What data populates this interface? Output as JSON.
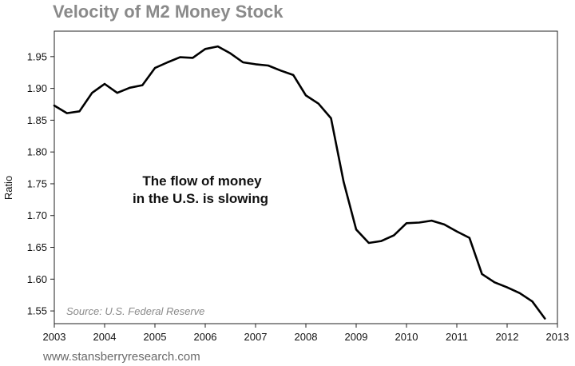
{
  "header": {
    "title": "Velocity of M2 Money Stock"
  },
  "footer": {
    "url": "www.stansberryresearch.com"
  },
  "chart_data": {
    "type": "line",
    "title": "Velocity of M2 Money Stock",
    "xlabel": "",
    "ylabel": "Ratio",
    "xlim": [
      2003,
      2013
    ],
    "ylim": [
      1.53,
      1.99
    ],
    "x_ticks": [
      2003,
      2004,
      2005,
      2006,
      2007,
      2008,
      2009,
      2010,
      2011,
      2012,
      2013
    ],
    "x_tick_labels": [
      "2003",
      "2004",
      "2005",
      "2006",
      "2007",
      "2008",
      "2009",
      "2010",
      "2011",
      "2012",
      "2013"
    ],
    "y_ticks": [
      1.55,
      1.6,
      1.65,
      1.7,
      1.75,
      1.8,
      1.85,
      1.9,
      1.95
    ],
    "y_tick_labels": [
      "1.55",
      "1.60",
      "1.65",
      "1.70",
      "1.75",
      "1.80",
      "1.85",
      "1.90",
      "1.95"
    ],
    "grid": false,
    "legend": "none",
    "series": [
      {
        "name": "Velocity of M2",
        "x": [
          2003.0,
          2003.25,
          2003.5,
          2003.75,
          2004.0,
          2004.25,
          2004.5,
          2004.75,
          2005.0,
          2005.25,
          2005.5,
          2005.75,
          2006.0,
          2006.25,
          2006.5,
          2006.75,
          2007.0,
          2007.25,
          2007.5,
          2007.75,
          2008.0,
          2008.25,
          2008.5,
          2008.75,
          2009.0,
          2009.25,
          2009.5,
          2009.75,
          2010.0,
          2010.25,
          2010.5,
          2010.75,
          2011.0,
          2011.25,
          2011.5,
          2011.75,
          2012.0,
          2012.25,
          2012.5,
          2012.75
        ],
        "values": [
          1.873,
          1.861,
          1.864,
          1.893,
          1.907,
          1.893,
          1.901,
          1.905,
          1.932,
          1.941,
          1.949,
          1.948,
          1.962,
          1.966,
          1.955,
          1.941,
          1.938,
          1.936,
          1.928,
          1.921,
          1.889,
          1.876,
          1.853,
          1.753,
          1.678,
          1.657,
          1.66,
          1.669,
          1.688,
          1.689,
          1.692,
          1.686,
          1.675,
          1.665,
          1.608,
          1.595,
          1.587,
          1.578,
          1.565,
          1.538
        ]
      }
    ],
    "annotations": [
      {
        "text_lines": [
          "The flow of money",
          "in the U.S. is slowing"
        ]
      },
      {
        "text": "Source: U.S. Federal Reserve"
      }
    ]
  }
}
